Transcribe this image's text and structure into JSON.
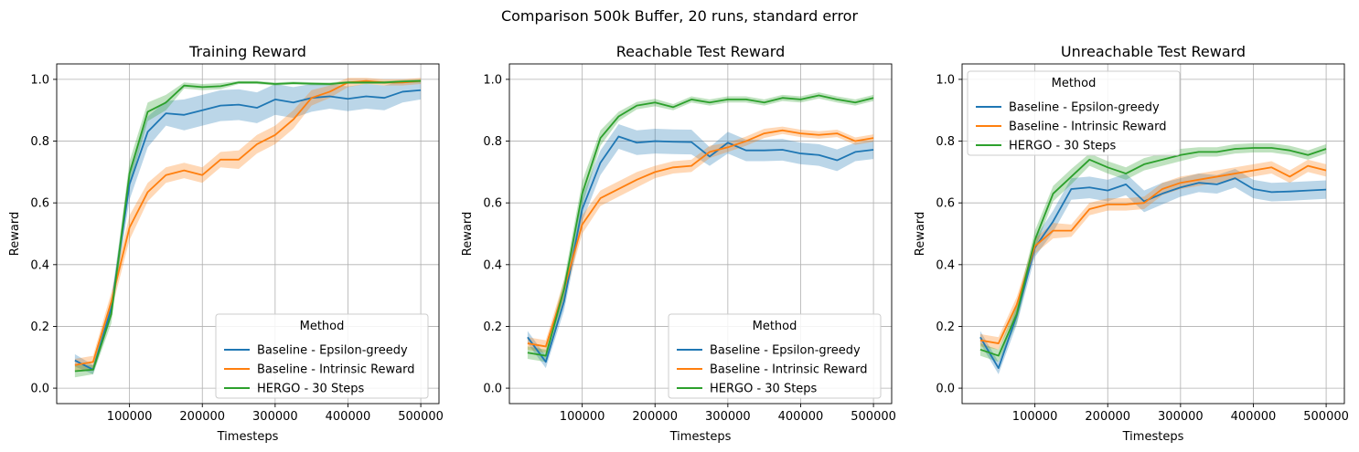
{
  "figure": {
    "suptitle": "Comparison 500k Buffer, 20 runs, standard error"
  },
  "series_colors": {
    "Baseline - Epsilon-greedy": "#1f77b4",
    "Baseline - Intrinsic Reward": "#ff7f0e",
    "HERGO - 30 Steps": "#2ca02c"
  },
  "chart_data": [
    {
      "type": "line",
      "title": "Training Reward",
      "xlabel": "Timesteps",
      "ylabel": "Reward",
      "xlim": [
        0,
        525000
      ],
      "ylim": [
        -0.05,
        1.05
      ],
      "xticks": [
        100000,
        200000,
        300000,
        400000,
        500000
      ],
      "yticks": [
        0.0,
        0.2,
        0.4,
        0.6,
        0.8,
        1.0
      ],
      "grid": true,
      "legend": {
        "title": "Method",
        "placement": "lower-right"
      },
      "x": [
        25000,
        50000,
        75000,
        100000,
        125000,
        150000,
        175000,
        200000,
        225000,
        250000,
        275000,
        300000,
        325000,
        350000,
        375000,
        400000,
        425000,
        450000,
        475000,
        500000
      ],
      "series": [
        {
          "name": "Baseline - Epsilon-greedy",
          "values": [
            0.09,
            0.06,
            0.26,
            0.66,
            0.83,
            0.89,
            0.885,
            0.9,
            0.915,
            0.918,
            0.908,
            0.935,
            0.925,
            0.94,
            0.945,
            0.937,
            0.945,
            0.94,
            0.96,
            0.965
          ],
          "err": [
            0.02,
            0.015,
            0.03,
            0.05,
            0.05,
            0.04,
            0.05,
            0.05,
            0.05,
            0.05,
            0.05,
            0.05,
            0.05,
            0.045,
            0.04,
            0.04,
            0.04,
            0.04,
            0.035,
            0.03
          ]
        },
        {
          "name": "Baseline - Intrinsic Reward",
          "values": [
            0.075,
            0.085,
            0.28,
            0.52,
            0.635,
            0.69,
            0.705,
            0.69,
            0.74,
            0.74,
            0.79,
            0.82,
            0.87,
            0.94,
            0.96,
            0.99,
            0.995,
            0.99,
            0.99,
            0.995
          ],
          "err": [
            0.02,
            0.02,
            0.03,
            0.04,
            0.03,
            0.025,
            0.025,
            0.025,
            0.025,
            0.03,
            0.03,
            0.03,
            0.03,
            0.025,
            0.02,
            0.015,
            0.01,
            0.01,
            0.01,
            0.01
          ]
        },
        {
          "name": "HERGO - 30 Steps",
          "values": [
            0.055,
            0.06,
            0.24,
            0.695,
            0.895,
            0.925,
            0.98,
            0.975,
            0.978,
            0.99,
            0.99,
            0.985,
            0.988,
            0.986,
            0.985,
            0.99,
            0.99,
            0.99,
            0.993,
            0.995
          ],
          "err": [
            0.02,
            0.015,
            0.03,
            0.04,
            0.03,
            0.025,
            0.01,
            0.01,
            0.01,
            0.005,
            0.005,
            0.005,
            0.005,
            0.005,
            0.005,
            0.005,
            0.005,
            0.005,
            0.005,
            0.005
          ]
        }
      ]
    },
    {
      "type": "line",
      "title": "Reachable Test Reward",
      "xlabel": "Timesteps",
      "ylabel": "Reward",
      "xlim": [
        0,
        525000
      ],
      "ylim": [
        -0.05,
        1.05
      ],
      "xticks": [
        100000,
        200000,
        300000,
        400000,
        500000
      ],
      "yticks": [
        0.0,
        0.2,
        0.4,
        0.6,
        0.8,
        1.0
      ],
      "grid": true,
      "legend": {
        "title": "Method",
        "placement": "lower-right"
      },
      "x": [
        25000,
        50000,
        75000,
        100000,
        125000,
        150000,
        175000,
        200000,
        225000,
        250000,
        275000,
        300000,
        325000,
        350000,
        375000,
        400000,
        425000,
        450000,
        475000,
        500000
      ],
      "series": [
        {
          "name": "Baseline - Epsilon-greedy",
          "values": [
            0.165,
            0.085,
            0.28,
            0.58,
            0.73,
            0.815,
            0.795,
            0.8,
            0.798,
            0.797,
            0.75,
            0.795,
            0.77,
            0.77,
            0.772,
            0.76,
            0.755,
            0.738,
            0.765,
            0.772
          ],
          "err": [
            0.02,
            0.02,
            0.03,
            0.04,
            0.04,
            0.04,
            0.04,
            0.04,
            0.04,
            0.04,
            0.03,
            0.035,
            0.035,
            0.035,
            0.035,
            0.035,
            0.035,
            0.035,
            0.03,
            0.03
          ]
        },
        {
          "name": "Baseline - Intrinsic Reward",
          "values": [
            0.145,
            0.135,
            0.32,
            0.53,
            0.615,
            0.645,
            0.675,
            0.7,
            0.715,
            0.72,
            0.765,
            0.78,
            0.8,
            0.825,
            0.835,
            0.825,
            0.82,
            0.825,
            0.8,
            0.81
          ],
          "err": [
            0.02,
            0.02,
            0.03,
            0.03,
            0.025,
            0.025,
            0.025,
            0.02,
            0.02,
            0.02,
            0.02,
            0.015,
            0.015,
            0.015,
            0.012,
            0.012,
            0.012,
            0.012,
            0.012,
            0.012
          ]
        },
        {
          "name": "HERGO - 30 Steps",
          "values": [
            0.115,
            0.105,
            0.32,
            0.63,
            0.81,
            0.88,
            0.915,
            0.925,
            0.91,
            0.935,
            0.925,
            0.935,
            0.935,
            0.925,
            0.94,
            0.935,
            0.948,
            0.935,
            0.925,
            0.94
          ],
          "err": [
            0.02,
            0.02,
            0.03,
            0.04,
            0.025,
            0.015,
            0.012,
            0.012,
            0.01,
            0.01,
            0.01,
            0.01,
            0.01,
            0.01,
            0.01,
            0.01,
            0.01,
            0.01,
            0.01,
            0.01
          ]
        }
      ]
    },
    {
      "type": "line",
      "title": "Unreachable Test Reward",
      "xlabel": "Timesteps",
      "ylabel": "Reward",
      "xlim": [
        0,
        525000
      ],
      "ylim": [
        -0.05,
        1.05
      ],
      "xticks": [
        100000,
        200000,
        300000,
        400000,
        500000
      ],
      "yticks": [
        0.0,
        0.2,
        0.4,
        0.6,
        0.8,
        1.0
      ],
      "grid": true,
      "legend": {
        "title": "Method",
        "placement": "upper-left"
      },
      "x": [
        25000,
        50000,
        75000,
        100000,
        125000,
        150000,
        175000,
        200000,
        225000,
        250000,
        275000,
        300000,
        325000,
        350000,
        375000,
        400000,
        425000,
        450000,
        475000,
        500000
      ],
      "series": [
        {
          "name": "Baseline - Epsilon-greedy",
          "values": [
            0.165,
            0.065,
            0.235,
            0.455,
            0.54,
            0.645,
            0.65,
            0.64,
            0.66,
            0.605,
            0.63,
            0.65,
            0.665,
            0.66,
            0.68,
            0.645,
            0.635,
            0.637,
            0.64,
            0.643
          ],
          "err": [
            0.02,
            0.02,
            0.03,
            0.03,
            0.035,
            0.035,
            0.035,
            0.035,
            0.035,
            0.035,
            0.035,
            0.03,
            0.03,
            0.03,
            0.03,
            0.03,
            0.03,
            0.03,
            0.03,
            0.03
          ]
        },
        {
          "name": "Baseline - Intrinsic Reward",
          "values": [
            0.155,
            0.145,
            0.27,
            0.46,
            0.51,
            0.51,
            0.58,
            0.595,
            0.595,
            0.6,
            0.645,
            0.665,
            0.675,
            0.685,
            0.695,
            0.705,
            0.715,
            0.685,
            0.72,
            0.705
          ],
          "err": [
            0.02,
            0.02,
            0.025,
            0.025,
            0.025,
            0.02,
            0.02,
            0.02,
            0.02,
            0.02,
            0.02,
            0.02,
            0.02,
            0.02,
            0.02,
            0.02,
            0.02,
            0.02,
            0.02,
            0.02
          ]
        },
        {
          "name": "HERGO - 30 Steps",
          "values": [
            0.125,
            0.105,
            0.24,
            0.48,
            0.63,
            0.685,
            0.74,
            0.715,
            0.695,
            0.725,
            0.74,
            0.755,
            0.765,
            0.765,
            0.775,
            0.778,
            0.778,
            0.77,
            0.755,
            0.775
          ],
          "err": [
            0.02,
            0.02,
            0.03,
            0.03,
            0.025,
            0.025,
            0.02,
            0.02,
            0.02,
            0.02,
            0.02,
            0.02,
            0.015,
            0.015,
            0.015,
            0.015,
            0.015,
            0.015,
            0.015,
            0.015
          ]
        }
      ]
    }
  ]
}
